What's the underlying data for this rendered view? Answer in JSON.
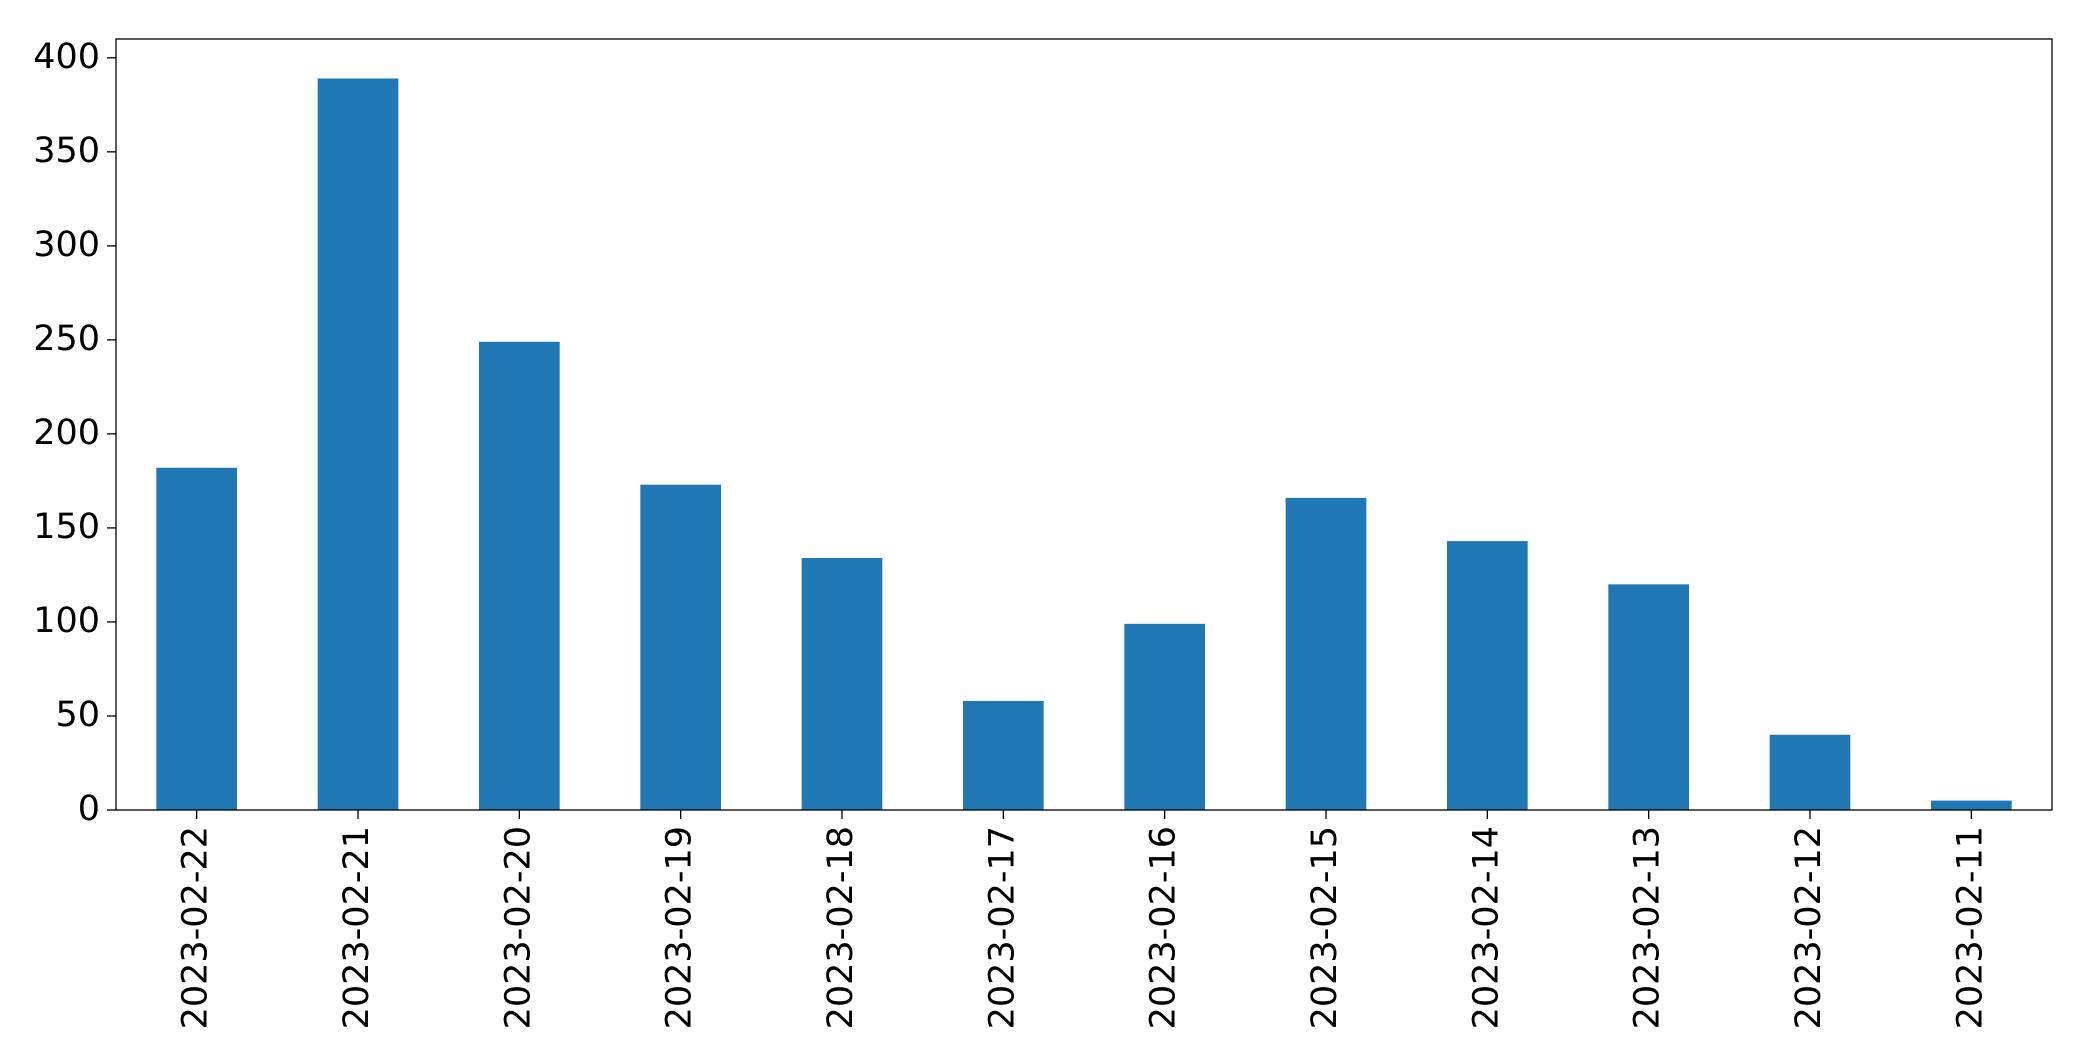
{
  "chart_data": {
    "type": "bar",
    "categories": [
      "2023-02-22",
      "2023-02-21",
      "2023-02-20",
      "2023-02-19",
      "2023-02-18",
      "2023-02-17",
      "2023-02-16",
      "2023-02-15",
      "2023-02-14",
      "2023-02-13",
      "2023-02-12",
      "2023-02-11"
    ],
    "values": [
      182,
      389,
      249,
      173,
      134,
      58,
      99,
      166,
      143,
      120,
      40,
      5
    ],
    "color": "#1f77b4",
    "ylim": [
      0,
      410
    ],
    "yticks": [
      0,
      50,
      100,
      150,
      200,
      250,
      300,
      350,
      400
    ],
    "grid": false
  }
}
